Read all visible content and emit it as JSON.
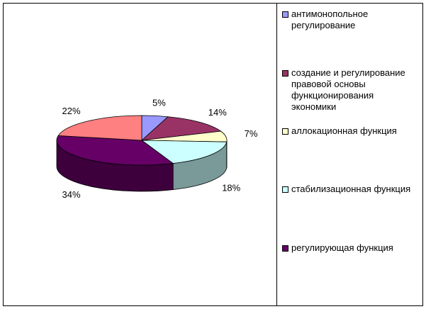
{
  "chart_data": {
    "type": "pie3d",
    "categories": [
      "антимонопольное регулирование",
      "создание и регулирование правовой основы функционирования экономики",
      "аллокационная функция",
      "стабилизационная функция",
      "регулирующая функция",
      null
    ],
    "values": [
      5,
      14,
      7,
      18,
      34,
      22
    ],
    "value_labels": [
      "5%",
      "14%",
      "7%",
      "18%",
      "34%",
      "22%"
    ],
    "colors": [
      "#9999ff",
      "#993366",
      "#ffffcc",
      "#ccffff",
      "#660066",
      "#ff8080"
    ],
    "legend": "right"
  }
}
